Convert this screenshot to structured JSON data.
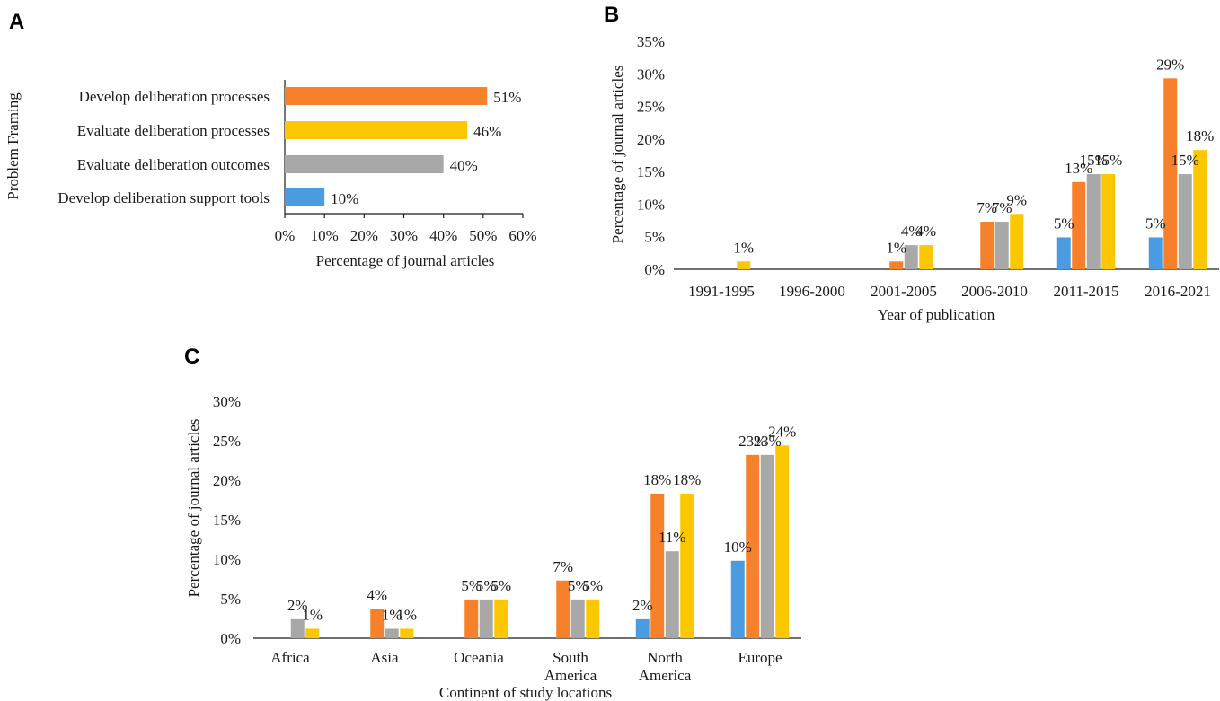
{
  "colors": {
    "blue": "#4A9BE0",
    "orange": "#F7812A",
    "gray": "#A8A8A8",
    "yellow": "#FCC600"
  },
  "chart_data": [
    {
      "panel": "A",
      "type": "bar",
      "orientation": "horizontal",
      "categories": [
        "Develop deliberation processes",
        "Evaluate deliberation processes",
        "Evaluate deliberation outcomes",
        "Develop deliberation support tools"
      ],
      "values": [
        51,
        46,
        40,
        10
      ],
      "labels": [
        "51%",
        "46%",
        "40%",
        "10%"
      ],
      "colors": [
        "orange",
        "yellow",
        "gray",
        "blue"
      ],
      "xlabel": "Percentage of journal articles",
      "ylabel": "Problem Framing",
      "xlim": [
        0,
        60
      ],
      "ticks": [
        "0%",
        "10%",
        "20%",
        "30%",
        "40%",
        "50%",
        "60%"
      ]
    },
    {
      "panel": "B",
      "type": "bar",
      "categories": [
        "1991-1995",
        "1996-2000",
        "2001-2005",
        "2006-2010",
        "2011-2015",
        "2016-2021"
      ],
      "series": [
        {
          "color": "blue",
          "values": [
            0,
            0,
            0,
            0,
            4.9,
            4.9
          ],
          "labels": [
            "",
            "",
            "",
            "",
            "5%",
            "5%"
          ]
        },
        {
          "color": "orange",
          "values": [
            0,
            0,
            1.2,
            7.3,
            13.4,
            29.3
          ],
          "labels": [
            "",
            "",
            "1%",
            "7%",
            "13%",
            "29%"
          ]
        },
        {
          "color": "gray",
          "values": [
            0,
            0,
            3.7,
            7.3,
            14.6,
            14.6
          ],
          "labels": [
            "",
            "",
            "4%",
            "7%",
            "15%",
            "15%"
          ]
        },
        {
          "color": "yellow",
          "values": [
            1.2,
            0,
            3.7,
            8.5,
            14.6,
            18.3
          ],
          "labels": [
            "1%",
            "",
            "4%",
            "9%",
            "15%",
            "18%"
          ]
        }
      ],
      "xlabel": "Year of publication",
      "ylabel": "Percentage of journal articles",
      "ylim": [
        0,
        35
      ],
      "ticks": [
        "0%",
        "5%",
        "10%",
        "15%",
        "20%",
        "25%",
        "30%",
        "35%"
      ]
    },
    {
      "panel": "C",
      "type": "bar",
      "categories": [
        "Africa",
        "Asia",
        "Oceania",
        "South America",
        "North America",
        "Europe"
      ],
      "series": [
        {
          "color": "blue",
          "values": [
            0,
            0,
            0,
            0,
            2.4,
            9.8
          ],
          "labels": [
            "",
            "",
            "",
            "",
            "2%",
            "10%"
          ]
        },
        {
          "color": "orange",
          "values": [
            0,
            3.7,
            4.9,
            7.3,
            18.3,
            23.2
          ],
          "labels": [
            "",
            "4%",
            "5%",
            "7%",
            "18%",
            "23%"
          ]
        },
        {
          "color": "gray",
          "values": [
            2.4,
            1.2,
            4.9,
            4.9,
            11.0,
            23.2
          ],
          "labels": [
            "2%",
            "1%",
            "5%",
            "5%",
            "11%",
            "23%"
          ]
        },
        {
          "color": "yellow",
          "values": [
            1.2,
            1.2,
            4.9,
            4.9,
            18.3,
            24.4
          ],
          "labels": [
            "1%",
            "1%",
            "5%",
            "5%",
            "18%",
            "24%"
          ]
        }
      ],
      "xlabel": "Continent of study locations",
      "ylabel": "Percentage of journal articles",
      "ylim": [
        0,
        30
      ],
      "ticks": [
        "0%",
        "5%",
        "10%",
        "15%",
        "20%",
        "25%",
        "30%"
      ]
    }
  ]
}
